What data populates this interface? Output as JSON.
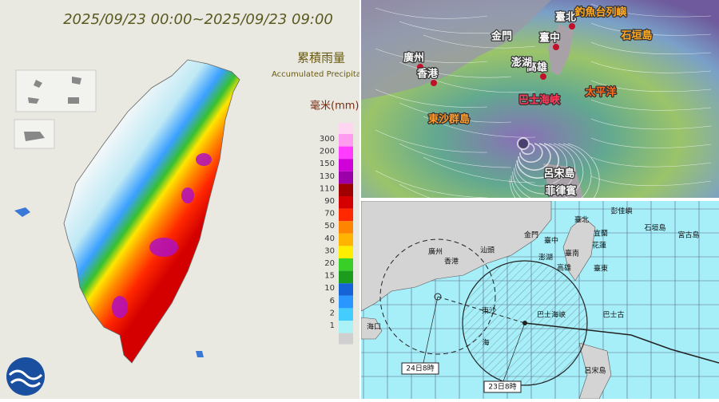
{
  "rain_map": {
    "time_range": "2025/09/23 00:00~2025/09/23 09:00",
    "legend_title": "累積雨量",
    "legend_subtitle": "Accumulated Precipitation",
    "unit": "毫米(mm)",
    "legend": [
      {
        "label": "300",
        "color": "#ff9cf0"
      },
      {
        "label": "200",
        "color": "#ff3cff"
      },
      {
        "label": "150",
        "color": "#d000d8"
      },
      {
        "label": "130",
        "color": "#9c00a8"
      },
      {
        "label": "110",
        "color": "#a00000"
      },
      {
        "label": "90",
        "color": "#d40000"
      },
      {
        "label": "70",
        "color": "#ff2800"
      },
      {
        "label": "50",
        "color": "#ff8400"
      },
      {
        "label": "40",
        "color": "#ffb400"
      },
      {
        "label": "30",
        "color": "#ffee00"
      },
      {
        "label": "20",
        "color": "#38d028"
      },
      {
        "label": "15",
        "color": "#1c9c1c"
      },
      {
        "label": "10",
        "color": "#1464d8"
      },
      {
        "label": "6",
        "color": "#2a96ff"
      },
      {
        "label": "2",
        "color": "#44ccff"
      },
      {
        "label": "1",
        "color": "#aaf2f6"
      }
    ]
  },
  "wind_map": {
    "labels": [
      "臺北",
      "臺中",
      "高雄",
      "廣州",
      "香港",
      "巴士海峽",
      "太平洋",
      "東沙群島",
      "呂宋島",
      "菲律賓",
      "金門",
      "澎湖",
      "釣魚台列嶼",
      "石垣島"
    ]
  },
  "track_map": {
    "labels": [
      "臺北",
      "彭佳嶼",
      "宜蘭",
      "花蓮",
      "臺東",
      "金門",
      "澎湖",
      "臺中",
      "臺南",
      "高雄",
      "石垣島",
      "宮古島",
      "廣州",
      "香港",
      "汕頭",
      "海口",
      "東沙",
      "海",
      "巴士海峽",
      "巴士古",
      "呂宋島"
    ],
    "time_labels": [
      "24日8時",
      "23日8時"
    ]
  }
}
